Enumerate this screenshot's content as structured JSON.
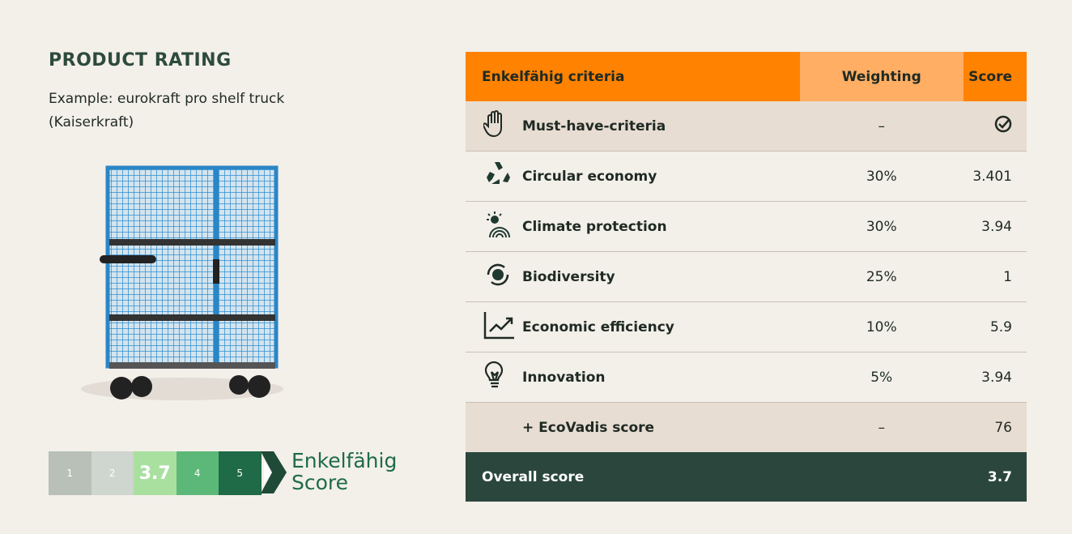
{
  "header": {
    "title": "PRODUCT RATING",
    "subtitle_line1": "Example: eurokraft pro shelf truck",
    "subtitle_line2": "(Kaiserkraft)"
  },
  "scale": {
    "steps": [
      "1",
      "2",
      "3.7",
      "4",
      "5"
    ],
    "logo_line1": "Enkelfähig",
    "logo_line2": "Score"
  },
  "table": {
    "columns": [
      "Enkelfähig criteria",
      "Weighting",
      "Score"
    ],
    "rows": [
      {
        "label": "Must-have-criteria",
        "weighting": "–"
      },
      {
        "label": "Circular economy",
        "weighting": "30%",
        "score": "3.401"
      },
      {
        "label": "Climate protection",
        "weighting": "30%",
        "score": "3.94"
      },
      {
        "label": "Biodiversity",
        "weighting": "25%",
        "score": "1"
      },
      {
        "label": "Economic efficiency",
        "weighting": "10%",
        "score": "5.9"
      },
      {
        "label": "Innovation",
        "weighting": "5%",
        "score": "3.94"
      },
      {
        "label": "+ EcoVadis score",
        "weighting": "–",
        "score": "76"
      }
    ],
    "total": {
      "label": "Overall score",
      "score": "3.7"
    }
  }
}
